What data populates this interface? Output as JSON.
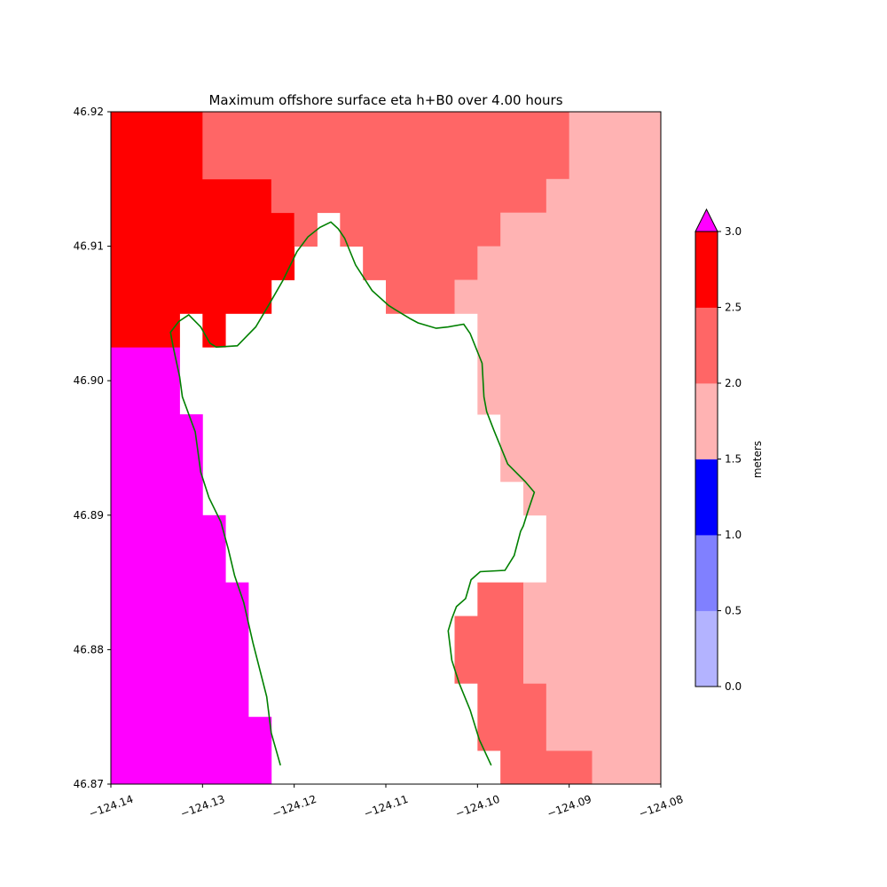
{
  "chart_data": {
    "type": "heatmap",
    "title": "Maximum offshore surface eta h+B0 over 4.00 hours",
    "xlabel": "",
    "ylabel": "",
    "xlim": [
      -124.14,
      -124.08
    ],
    "ylim": [
      46.87,
      46.92
    ],
    "x_ticks": [
      "−124.14",
      "−124.13",
      "−124.12",
      "−124.11",
      "−124.10",
      "−124.09",
      "−124.08"
    ],
    "x_tick_values": [
      -124.14,
      -124.13,
      -124.12,
      -124.11,
      -124.1,
      -124.09,
      -124.08
    ],
    "y_ticks": [
      "46.87",
      "46.88",
      "46.89",
      "46.90",
      "46.91",
      "46.92"
    ],
    "y_tick_values": [
      46.87,
      46.88,
      46.89,
      46.9,
      46.91,
      46.92
    ],
    "grid": false,
    "colorbar": {
      "label": "meters",
      "levels": [
        0.0,
        0.5,
        1.0,
        1.5,
        2.0,
        2.5,
        3.0
      ],
      "tick_labels": [
        "0.0",
        "0.5",
        "1.0",
        "1.5",
        "2.0",
        "2.5",
        "3.0"
      ],
      "colors": [
        "#b3b3ff",
        "#8080ff",
        "#0000ff",
        "#ffb3b3",
        "#ff6666",
        "#ff0000"
      ],
      "over_color": "#ff00ff",
      "extend": "max"
    },
    "cell_size": {
      "dx": 0.0025,
      "dy": 0.0025
    },
    "regions": [
      {
        "level": "over",
        "cells": [
          [
            -124.14,
            46.87,
            -124.1225,
            46.8725
          ],
          [
            -124.14,
            46.8725,
            -124.1225,
            46.875
          ],
          [
            -124.14,
            46.875,
            -124.125,
            46.885
          ],
          [
            -124.14,
            46.885,
            -124.1275,
            46.89
          ],
          [
            -124.14,
            46.89,
            -124.13,
            46.8975
          ],
          [
            -124.14,
            46.8975,
            -124.1325,
            46.9025
          ]
        ]
      },
      {
        "level": "2.5-3.0",
        "cells": [
          [
            -124.14,
            46.9025,
            -124.1325,
            46.905
          ],
          [
            -124.13,
            46.9025,
            -124.1275,
            46.905
          ],
          [
            -124.14,
            46.905,
            -124.1225,
            46.9075
          ],
          [
            -124.14,
            46.9075,
            -124.12,
            46.91
          ],
          [
            -124.14,
            46.91,
            -124.12,
            46.9125
          ],
          [
            -124.14,
            46.9125,
            -124.1225,
            46.915
          ],
          [
            -124.14,
            46.915,
            -124.13,
            46.92
          ]
        ]
      },
      {
        "level": "2.0-2.5",
        "cells": [
          [
            -124.13,
            46.915,
            -124.09,
            46.92
          ],
          [
            -124.1225,
            46.9125,
            -124.0925,
            46.915
          ],
          [
            -124.12,
            46.91,
            -124.1175,
            46.9125
          ],
          [
            -124.115,
            46.91,
            -124.0975,
            46.9125
          ],
          [
            -124.1125,
            46.9075,
            -124.1,
            46.91
          ],
          [
            -124.11,
            46.905,
            -124.1025,
            46.9075
          ],
          [
            -124.1,
            46.8825,
            -124.095,
            46.885
          ],
          [
            -124.1025,
            46.8775,
            -124.095,
            46.8825
          ],
          [
            -124.1,
            46.8725,
            -124.0925,
            46.8775
          ],
          [
            -124.0975,
            46.87,
            -124.0875,
            46.8725
          ]
        ]
      },
      {
        "level": "1.5-2.0",
        "cells": [
          [
            -124.09,
            46.915,
            -124.08,
            46.92
          ],
          [
            -124.0925,
            46.9125,
            -124.08,
            46.915
          ],
          [
            -124.0975,
            46.91,
            -124.08,
            46.9125
          ],
          [
            -124.1,
            46.9075,
            -124.08,
            46.91
          ],
          [
            -124.1025,
            46.905,
            -124.08,
            46.9075
          ],
          [
            -124.1,
            46.8975,
            -124.08,
            46.905
          ],
          [
            -124.0975,
            46.8925,
            -124.08,
            46.8975
          ],
          [
            -124.095,
            46.89,
            -124.08,
            46.8925
          ],
          [
            -124.0925,
            46.885,
            -124.08,
            46.89
          ],
          [
            -124.095,
            46.8775,
            -124.08,
            46.885
          ],
          [
            -124.0925,
            46.8725,
            -124.08,
            46.8775
          ],
          [
            -124.0875,
            46.87,
            -124.08,
            46.8725
          ]
        ]
      }
    ],
    "coastline": [
      [
        -124.1215,
        46.8714
      ],
      [
        -124.1225,
        46.8738
      ],
      [
        -124.123,
        46.8765
      ],
      [
        -124.1245,
        46.8805
      ],
      [
        -124.1255,
        46.8835
      ],
      [
        -124.1265,
        46.8855
      ],
      [
        -124.1272,
        46.8875
      ],
      [
        -124.128,
        46.8895
      ],
      [
        -124.1293,
        46.8913
      ],
      [
        -124.1302,
        46.8932
      ],
      [
        -124.1308,
        46.8962
      ],
      [
        -124.1322,
        46.8988
      ],
      [
        -124.1325,
        46.9003
      ],
      [
        -124.1332,
        46.9025
      ],
      [
        -124.1335,
        46.9036
      ],
      [
        -124.1326,
        46.9044
      ],
      [
        -124.1315,
        46.9049
      ],
      [
        -124.1302,
        46.904
      ],
      [
        -124.1292,
        46.9028
      ],
      [
        -124.1285,
        46.9025
      ],
      [
        -124.1262,
        46.9026
      ],
      [
        -124.1242,
        46.904
      ],
      [
        -124.1228,
        46.9056
      ],
      [
        -124.1212,
        46.9075
      ],
      [
        -124.1197,
        46.9096
      ],
      [
        -124.1185,
        46.9107
      ],
      [
        -124.1172,
        46.9114
      ],
      [
        -124.116,
        46.9118
      ],
      [
        -124.1152,
        46.9113
      ],
      [
        -124.1145,
        46.9106
      ],
      [
        -124.1133,
        46.9086
      ],
      [
        -124.1115,
        46.9067
      ],
      [
        -124.1097,
        46.9056
      ],
      [
        -124.109,
        46.9053
      ],
      [
        -124.1073,
        46.9046
      ],
      [
        -124.1065,
        46.9043
      ],
      [
        -124.1045,
        46.9039
      ],
      [
        -124.1032,
        46.904
      ],
      [
        -124.1015,
        46.9042
      ],
      [
        -124.1008,
        46.9035
      ],
      [
        -124.0995,
        46.9013
      ],
      [
        -124.0993,
        46.8988
      ],
      [
        -124.099,
        46.8977
      ],
      [
        -124.0982,
        46.8963
      ],
      [
        -124.0967,
        46.8938
      ],
      [
        -124.0948,
        46.8925
      ],
      [
        -124.0938,
        46.8917
      ],
      [
        -124.0945,
        46.8903
      ],
      [
        -124.095,
        46.8892
      ],
      [
        -124.0953,
        46.8888
      ],
      [
        -124.096,
        46.887
      ],
      [
        -124.097,
        46.8859
      ],
      [
        -124.0997,
        46.8858
      ],
      [
        -124.1007,
        46.8852
      ],
      [
        -124.1013,
        46.8838
      ],
      [
        -124.1023,
        46.8832
      ],
      [
        -124.1028,
        46.8823
      ],
      [
        -124.1032,
        46.8814
      ],
      [
        -124.1028,
        46.8792
      ],
      [
        -124.102,
        46.8775
      ],
      [
        -124.1008,
        46.8755
      ],
      [
        -124.0998,
        46.8733
      ],
      [
        -124.0985,
        46.8714
      ]
    ],
    "coastline_color": "#008000"
  }
}
